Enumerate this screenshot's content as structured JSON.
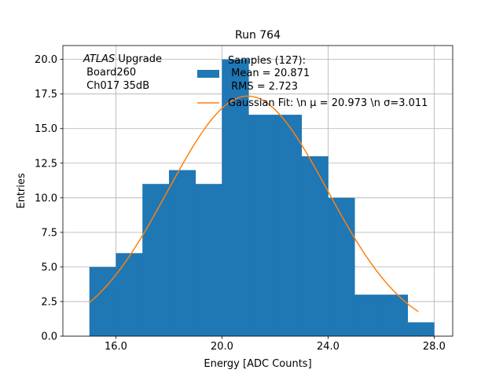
{
  "chart_data": {
    "type": "bar",
    "title": "Run 764",
    "xlabel": "Energy [ADC Counts]",
    "ylabel": "Entries",
    "xlim": [
      14.0,
      28.7
    ],
    "ylim": [
      0,
      21.0
    ],
    "grid": true,
    "x_ticks": [
      16.0,
      20.0,
      24.0,
      28.0
    ],
    "x_tick_labels": [
      "16.0",
      "20.0",
      "24.0",
      "28.0"
    ],
    "y_ticks": [
      0,
      2.5,
      5,
      7.5,
      10,
      12.5,
      15,
      17.5,
      20
    ],
    "y_tick_labels": [
      "0.0",
      "2.5",
      "5.0",
      "7.5",
      "10.0",
      "12.5",
      "15.0",
      "17.5",
      "20.0"
    ],
    "histogram": {
      "name": "Samples (127):",
      "color": "#1f77b4",
      "bin_edges": [
        15,
        16,
        17,
        18,
        19,
        20,
        21,
        22,
        23,
        24,
        25,
        26,
        27,
        28
      ],
      "counts": [
        5,
        6,
        11,
        12,
        11,
        20,
        16,
        16,
        13,
        10,
        3,
        3,
        1
      ]
    },
    "fit": {
      "name": "Gaussian Fit",
      "color": "#ff7f0e",
      "amplitude": 17.35,
      "mu": 20.973,
      "sigma": 3.011,
      "x_range": [
        15.0,
        27.4
      ]
    },
    "legend": {
      "position": "top-center",
      "hist_label_lines": [
        "Samples (127):",
        " Mean = 20.871",
        " RMS = 2.723"
      ],
      "fit_label": "Gaussian Fit: \\n μ = 20.973 \\n σ=3.011"
    },
    "annotation": {
      "position": "top-left",
      "italic": "ATLAS",
      "line1_rest": " Upgrade",
      "line2": " Board260",
      "line3": " Ch017 35dB"
    }
  }
}
